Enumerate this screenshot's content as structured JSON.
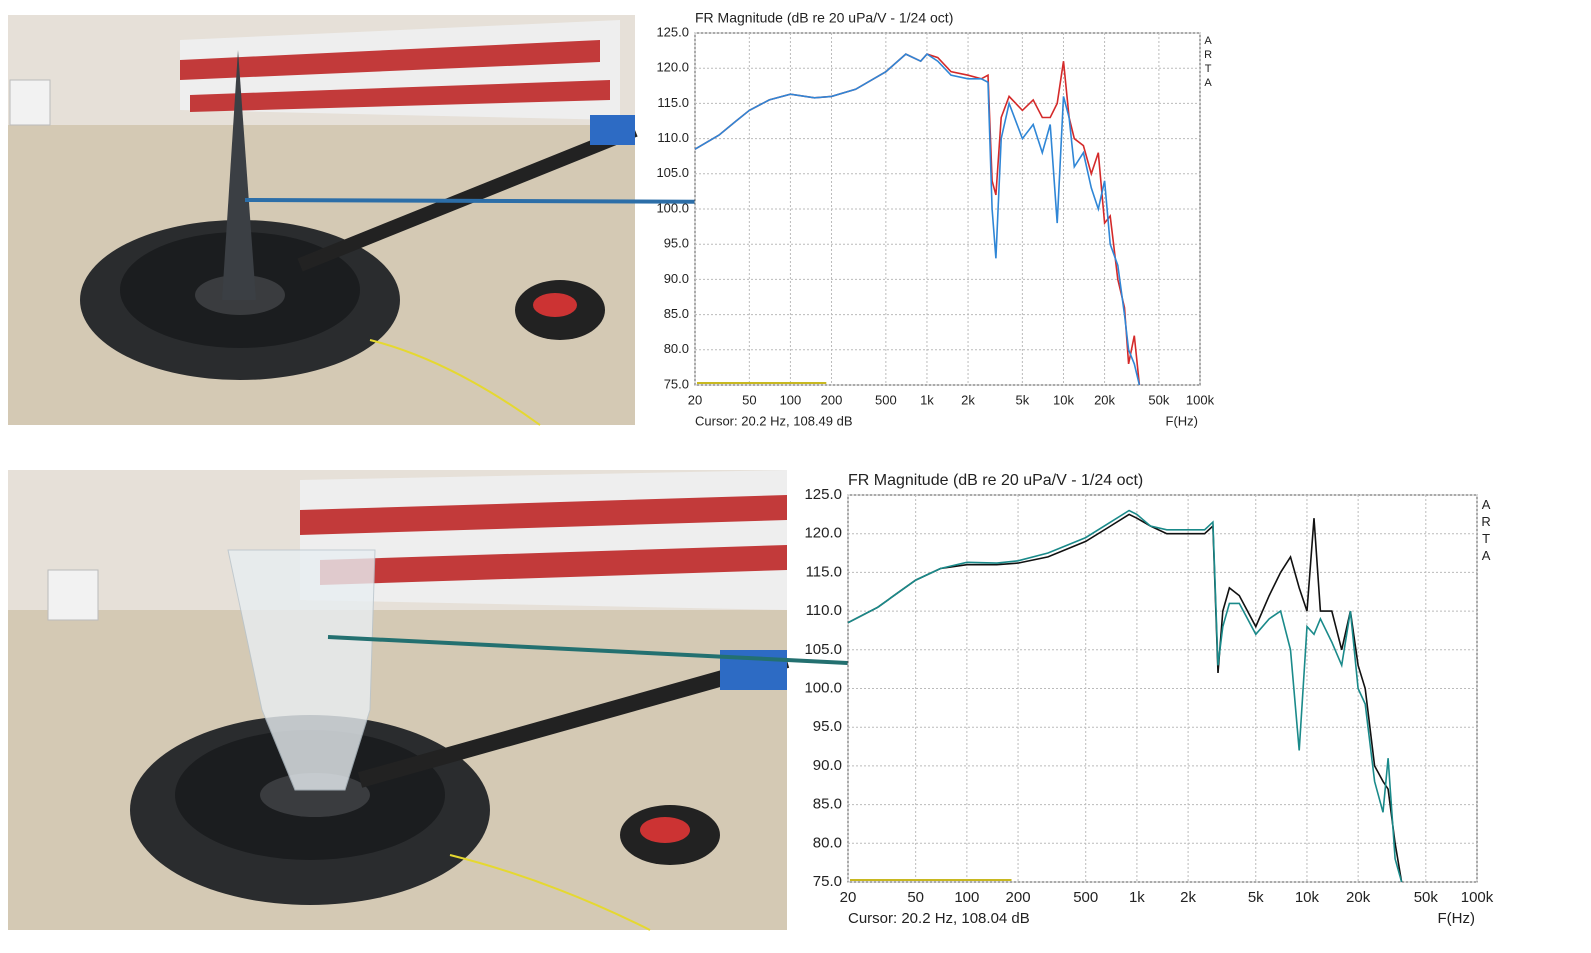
{
  "chart_data": [
    {
      "type": "line",
      "title": "FR Magnitude (dB re 20 uPa/V - 1/24 oct)",
      "x_label": "F(Hz)",
      "cursor": "Cursor: 20.2 Hz, 108.49 dB",
      "brand": "ARTA",
      "x_scale": "log",
      "grid": true,
      "x": [
        20,
        30,
        40,
        50,
        70,
        100,
        150,
        200,
        300,
        500,
        700,
        900,
        1000,
        1200,
        1500,
        2000,
        2500,
        2800,
        3000,
        3200,
        3500,
        4000,
        5000,
        6000,
        7000,
        8000,
        9000,
        10000,
        11000,
        12000,
        14000,
        16000,
        18000,
        20000,
        22000,
        25000,
        28000,
        30000,
        33000,
        36000
      ],
      "series": [
        {
          "name": "red",
          "color": "#d42a2a",
          "values": [
            108.5,
            110.5,
            112.5,
            114,
            115.5,
            116.3,
            115.8,
            116,
            117,
            119.5,
            122,
            121,
            122,
            121.5,
            119.5,
            119,
            118.5,
            119,
            104,
            102,
            113,
            116,
            114,
            115.5,
            113,
            113,
            115,
            121,
            113,
            110,
            109,
            105,
            108,
            98,
            99,
            90,
            86,
            78,
            82,
            75
          ]
        },
        {
          "name": "blue",
          "color": "#2f86d6",
          "values": [
            108.5,
            110.5,
            112.5,
            114,
            115.5,
            116.3,
            115.8,
            116,
            117,
            119.5,
            122,
            121,
            122,
            121,
            119,
            118.5,
            118.5,
            118,
            100,
            93,
            110,
            115,
            110,
            112,
            108,
            112,
            98,
            116,
            113,
            106,
            108,
            103,
            100,
            104,
            95,
            92,
            85,
            80,
            78,
            75
          ]
        }
      ],
      "xlim": [
        20,
        100000
      ],
      "ylim": [
        75,
        125
      ],
      "xticks": [
        20,
        50,
        100,
        200,
        500,
        {
          "value": 1000,
          "label": "1k"
        },
        {
          "value": 2000,
          "label": "2k"
        },
        {
          "value": 5000,
          "label": "5k"
        },
        {
          "value": 10000,
          "label": "10k"
        },
        {
          "value": 20000,
          "label": "20k"
        },
        {
          "value": 50000,
          "label": "50k"
        },
        {
          "value": 100000,
          "label": "100k"
        }
      ],
      "yticks": [
        {
          "value": 75,
          "label": "75.0"
        },
        {
          "value": 80,
          "label": "80.0"
        },
        {
          "value": 85,
          "label": "85.0"
        },
        {
          "value": 90,
          "label": "90.0"
        },
        {
          "value": 95,
          "label": "95.0"
        },
        {
          "value": 100,
          "label": "100.0"
        },
        {
          "value": 105,
          "label": "105.0"
        },
        {
          "value": 110,
          "label": "110.0"
        },
        {
          "value": 115,
          "label": "115.0"
        },
        {
          "value": 120,
          "label": "120.0"
        },
        {
          "value": 125,
          "label": "125.0"
        }
      ]
    },
    {
      "type": "line",
      "title": "FR Magnitude (dB re 20 uPa/V - 1/24 oct)",
      "x_label": "F(Hz)",
      "cursor": "Cursor: 20.2 Hz, 108.04 dB",
      "brand": "ARTA",
      "x_scale": "log",
      "grid": true,
      "x": [
        20,
        30,
        40,
        50,
        70,
        100,
        150,
        200,
        300,
        500,
        700,
        900,
        1000,
        1200,
        1500,
        2000,
        2500,
        2800,
        3000,
        3200,
        3500,
        4000,
        5000,
        6000,
        7000,
        8000,
        9000,
        10000,
        11000,
        12000,
        14000,
        16000,
        18000,
        20000,
        22000,
        25000,
        28000,
        30000,
        33000,
        36000
      ],
      "series": [
        {
          "name": "black",
          "color": "#111111",
          "values": [
            108.5,
            110.5,
            112.5,
            114,
            115.5,
            116,
            116,
            116.2,
            117,
            119,
            121,
            122.5,
            122,
            121,
            120,
            120,
            120,
            121,
            102,
            110,
            113,
            112,
            108,
            112,
            115,
            117,
            113,
            110,
            122,
            110,
            110,
            105,
            110,
            103,
            100,
            90,
            88,
            87,
            80,
            75
          ]
        },
        {
          "name": "teal",
          "color": "#1a8a8a",
          "values": [
            108.5,
            110.5,
            112.5,
            114,
            115.5,
            116.3,
            116.2,
            116.5,
            117.5,
            119.5,
            121.5,
            123,
            122.5,
            121,
            120.5,
            120.5,
            120.5,
            121.5,
            103,
            108,
            111,
            111,
            107,
            109,
            110,
            105,
            92,
            108,
            107,
            109,
            106,
            103,
            110,
            100,
            98,
            88,
            84,
            91,
            78,
            75
          ]
        }
      ],
      "xlim": [
        20,
        100000
      ],
      "ylim": [
        75,
        125
      ],
      "xticks": [
        20,
        50,
        100,
        200,
        500,
        {
          "value": 1000,
          "label": "1k"
        },
        {
          "value": 2000,
          "label": "2k"
        },
        {
          "value": 5000,
          "label": "5k"
        },
        {
          "value": 10000,
          "label": "10k"
        },
        {
          "value": 20000,
          "label": "20k"
        },
        {
          "value": 50000,
          "label": "50k"
        },
        {
          "value": 100000,
          "label": "100k"
        }
      ],
      "yticks": [
        {
          "value": 75,
          "label": "75.0"
        },
        {
          "value": 80,
          "label": "80.0"
        },
        {
          "value": 85,
          "label": "85.0"
        },
        {
          "value": 90,
          "label": "90.0"
        },
        {
          "value": 95,
          "label": "95.0"
        },
        {
          "value": 100,
          "label": "100.0"
        },
        {
          "value": 105,
          "label": "105.0"
        },
        {
          "value": 110,
          "label": "110.0"
        },
        {
          "value": 115,
          "label": "115.0"
        },
        {
          "value": 120,
          "label": "120.0"
        },
        {
          "value": 125,
          "label": "125.0"
        }
      ]
    }
  ]
}
